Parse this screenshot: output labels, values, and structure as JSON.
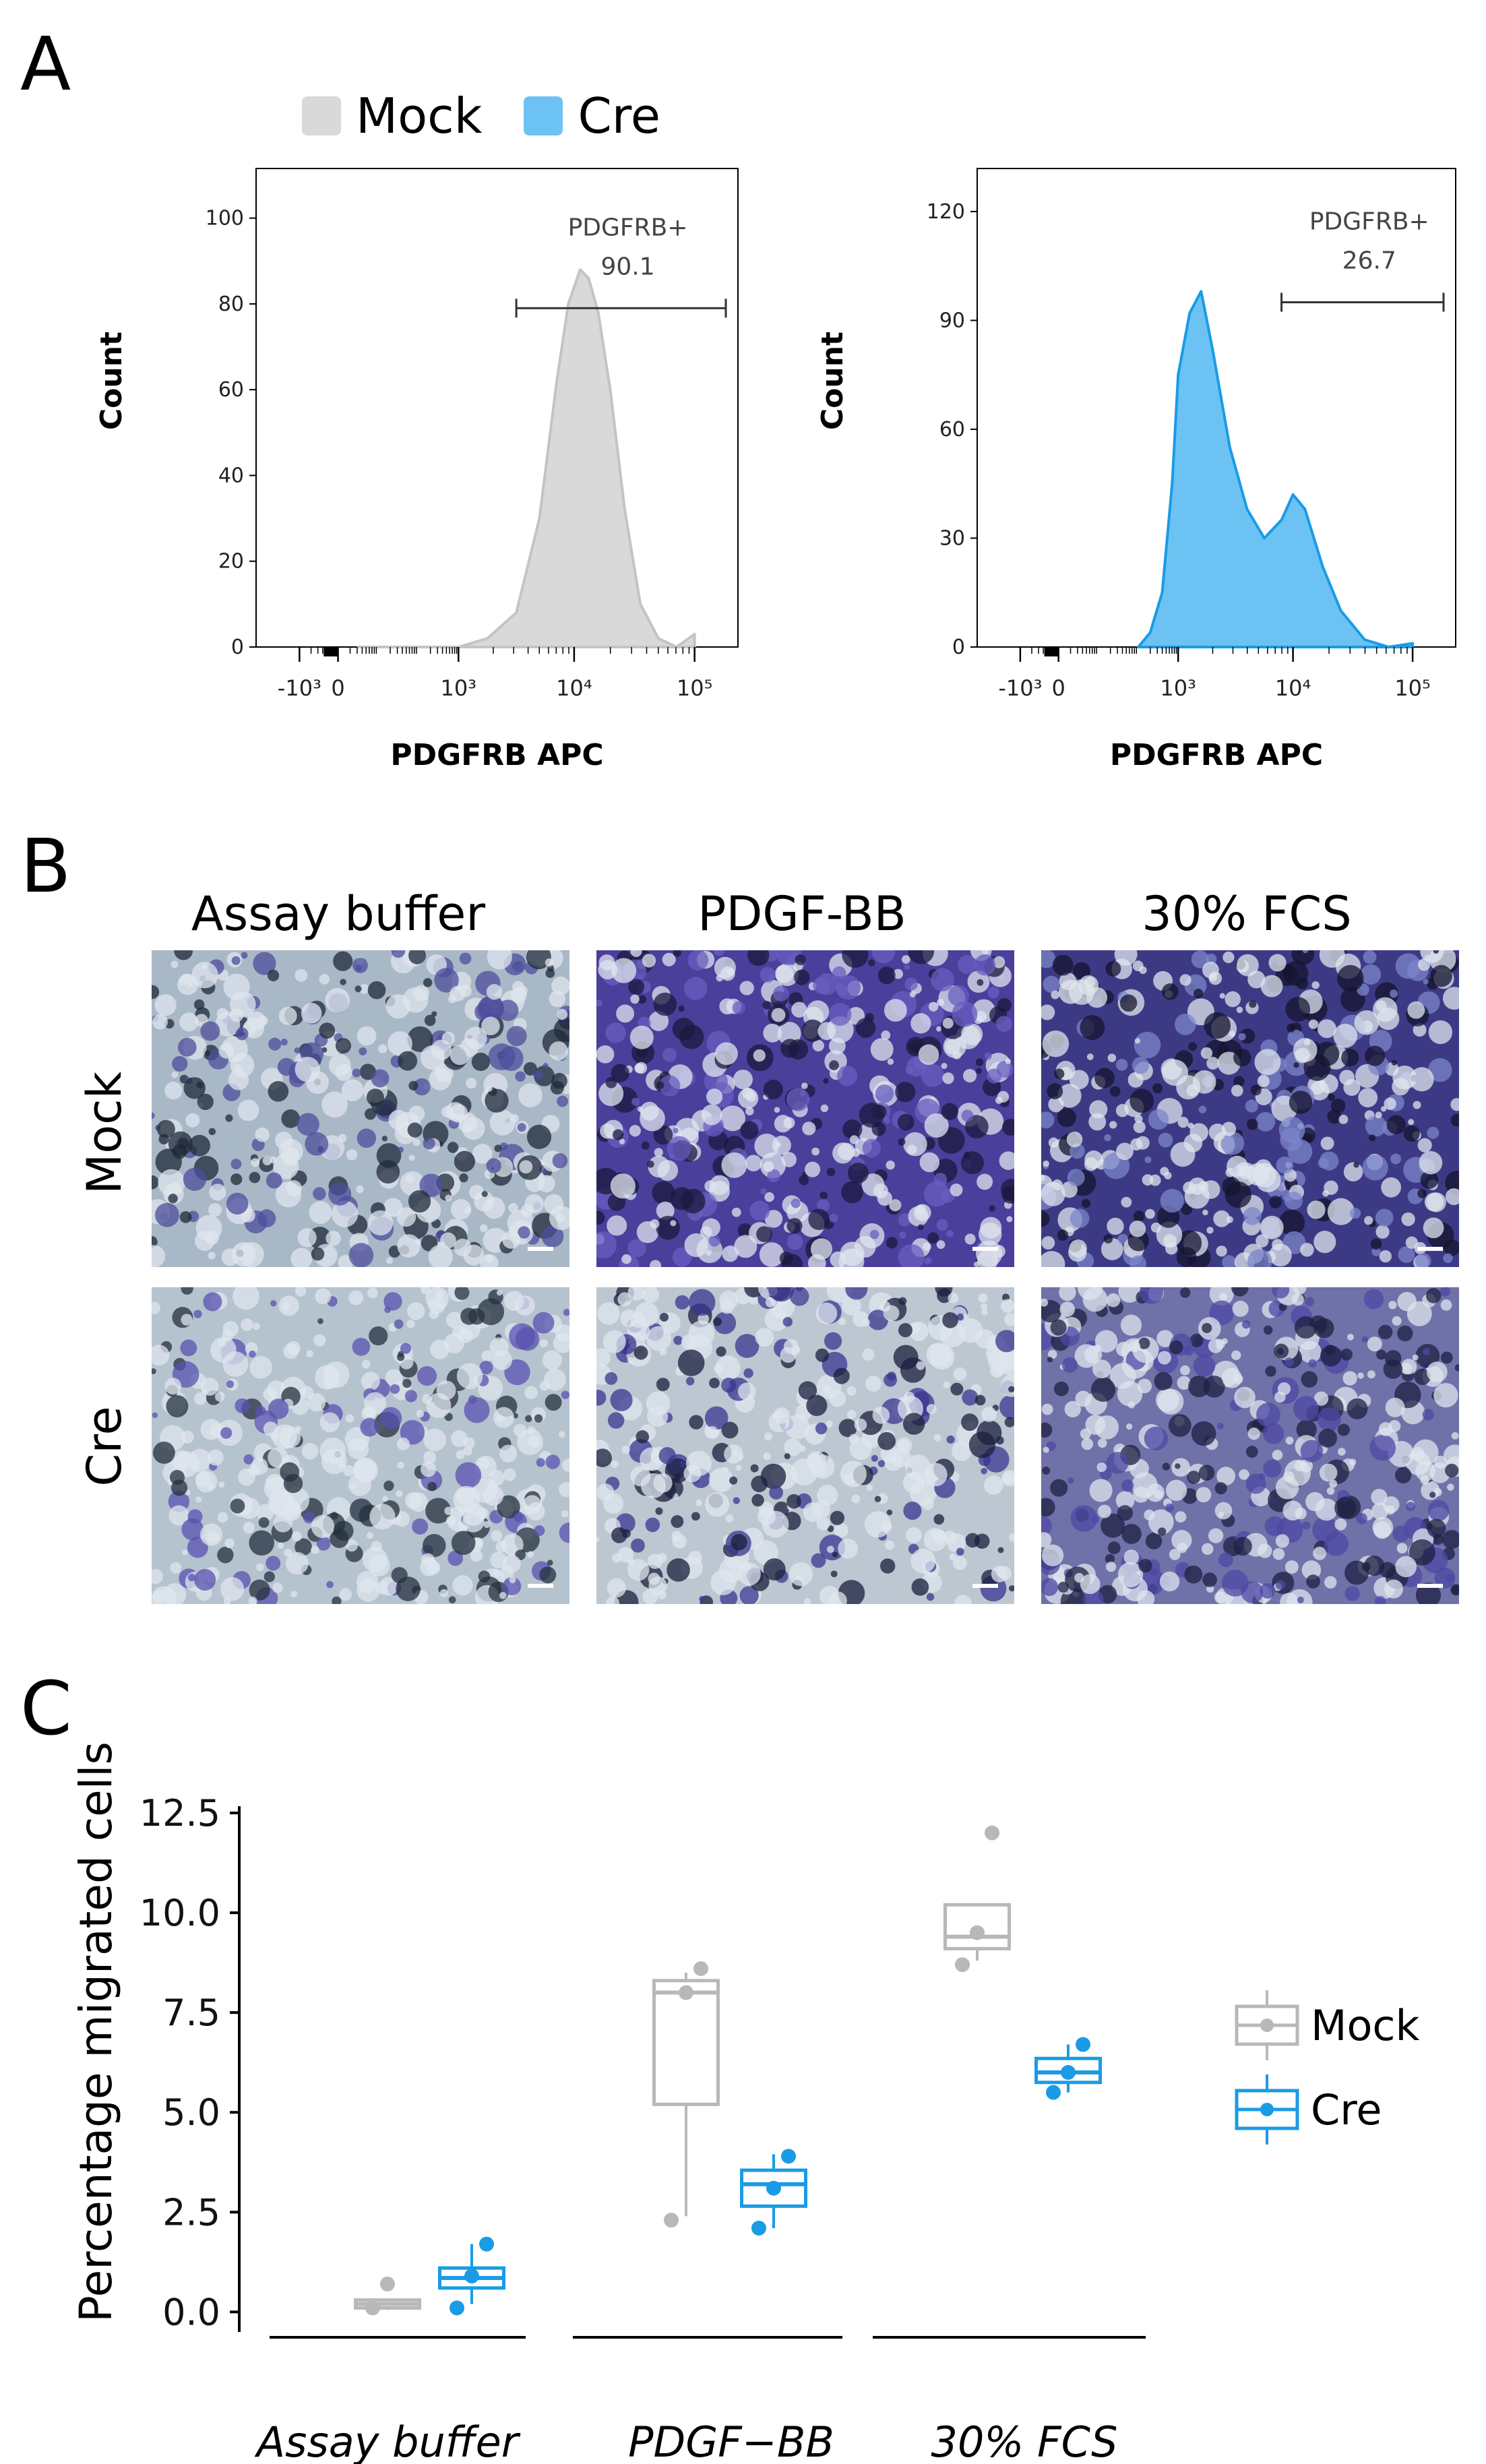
{
  "panel_labels": {
    "a": "A",
    "b": "B",
    "c": "C"
  },
  "panel_a": {
    "legend": [
      {
        "label": "Mock",
        "color": "#d9d9d9"
      },
      {
        "label": "Cre",
        "color": "#6cc3f3"
      }
    ],
    "ylabel": "Count",
    "xlabel": "PDGFRB APC",
    "x_ticks": [
      "-10³",
      "0",
      "10³",
      "10⁴",
      "10⁵"
    ],
    "gate_label": "PDGFRB+"
  },
  "panel_b": {
    "columns": [
      "Assay buffer",
      "PDGF-BB",
      "30% FCS"
    ],
    "rows": [
      "Mock",
      "Cre"
    ]
  },
  "panel_c_legend": [
    {
      "label": "Mock",
      "color": "#b8b8b8"
    },
    {
      "label": "Cre",
      "color": "#1a9be6"
    }
  ],
  "chart_data": [
    {
      "type": "area",
      "panel": "A-left",
      "series": [
        {
          "name": "Mock",
          "color": "#d9d9d9",
          "stroke": "#c4c4c4"
        }
      ],
      "x_log_positions": [
        0.5,
        1.0,
        1.5,
        2.0,
        2.5,
        3.0,
        3.25,
        3.5,
        3.7,
        3.85,
        3.95,
        4.05,
        4.12,
        4.2,
        4.3,
        4.42,
        4.55,
        4.7,
        4.85,
        5.0
      ],
      "values": [
        0,
        0,
        0,
        0,
        0,
        0,
        2,
        8,
        30,
        62,
        80,
        88,
        86,
        78,
        60,
        32,
        10,
        2,
        0,
        3
      ],
      "ylim": [
        0,
        110
      ],
      "y_ticks": [
        0,
        20,
        40,
        60,
        80,
        100
      ],
      "ylabel": "Count",
      "xlabel": "PDGFRB APC",
      "gate": {
        "label": "PDGFRB+",
        "value": "90.1"
      }
    },
    {
      "type": "area",
      "panel": "A-right",
      "series": [
        {
          "name": "Cre",
          "color": "#6cc3f3",
          "stroke": "#1a9be6"
        }
      ],
      "x_log_positions": [
        2.0,
        2.3,
        2.6,
        2.85,
        3.0,
        3.1,
        3.2,
        3.3,
        3.45,
        3.6,
        3.75,
        3.9,
        4.0,
        4.1,
        4.25,
        4.4,
        4.6,
        4.8,
        5.0
      ],
      "values": [
        0,
        4,
        15,
        45,
        75,
        92,
        98,
        82,
        55,
        38,
        30,
        35,
        42,
        38,
        22,
        10,
        2,
        0,
        1
      ],
      "ylim": [
        0,
        130
      ],
      "y_ticks": [
        0,
        30,
        60,
        90,
        120
      ],
      "ylabel": "Count",
      "xlabel": "PDGFRB APC",
      "gate": {
        "label": "PDGFRB+",
        "value": "26.7"
      }
    },
    {
      "type": "box",
      "panel": "C",
      "title": "",
      "ylabel": "Percentage migrated cells",
      "xlabel": "",
      "ylim": [
        -0.5,
        12.5
      ],
      "y_ticks": [
        0.0,
        2.5,
        5.0,
        7.5,
        10.0,
        12.5
      ],
      "y_tick_labels": [
        "0.0",
        "2.5",
        "5.0",
        "7.5",
        "10.0",
        "12.5"
      ],
      "categories": [
        "Assay buffer",
        "PDGF−BB",
        "30% FCS"
      ],
      "series": [
        {
          "name": "Mock",
          "color": "#b8b8b8",
          "boxes": [
            {
              "min": 0.05,
              "q1": 0.1,
              "median": 0.2,
              "q3": 0.3,
              "max": 0.3,
              "points": [
                0.1,
                0.7
              ]
            },
            {
              "min": 2.4,
              "q1": 5.2,
              "median": 8.0,
              "q3": 8.3,
              "max": 8.5,
              "points": [
                2.3,
                8.0,
                8.6
              ]
            },
            {
              "min": 8.8,
              "q1": 9.1,
              "median": 9.4,
              "q3": 10.2,
              "max": 10.2,
              "points": [
                8.7,
                9.5,
                12.0
              ]
            }
          ]
        },
        {
          "name": "Cre",
          "color": "#1a9be6",
          "boxes": [
            {
              "min": 0.2,
              "q1": 0.6,
              "median": 0.85,
              "q3": 1.1,
              "max": 1.7,
              "points": [
                0.1,
                0.9,
                1.7
              ]
            },
            {
              "min": 2.1,
              "q1": 2.65,
              "median": 3.2,
              "q3": 3.55,
              "max": 3.95,
              "points": [
                2.1,
                3.1,
                3.9
              ]
            },
            {
              "min": 5.5,
              "q1": 5.75,
              "median": 6.0,
              "q3": 6.35,
              "max": 6.7,
              "points": [
                5.5,
                6.0,
                6.7
              ]
            }
          ]
        }
      ]
    }
  ]
}
